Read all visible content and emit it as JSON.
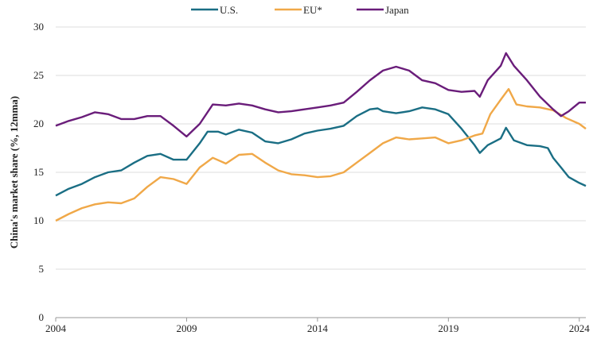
{
  "chart_data": {
    "type": "line",
    "title": "",
    "xlabel": "",
    "ylabel": "China's market share (%, 12mma)",
    "xlim": [
      2004,
      2024.25
    ],
    "ylim": [
      0,
      30
    ],
    "x_ticks": [
      "2004",
      "2009",
      "2014",
      "2019",
      "2024"
    ],
    "y_ticks": [
      "0",
      "5",
      "10",
      "15",
      "20",
      "25",
      "30"
    ],
    "grid": "horizontal",
    "legend_placement": "top-center",
    "series": [
      {
        "name": "U.S.",
        "color": "#1a6e84",
        "x": [
          2004,
          2004.5,
          2005,
          2005.5,
          2006,
          2006.5,
          2007,
          2007.5,
          2008,
          2008.5,
          2009,
          2009.5,
          2009.8,
          2010.2,
          2010.5,
          2011,
          2011.5,
          2012,
          2012.5,
          2013,
          2013.5,
          2014,
          2014.5,
          2015,
          2015.5,
          2016,
          2016.3,
          2016.5,
          2017,
          2017.5,
          2018,
          2018.5,
          2019,
          2019.5,
          2020,
          2020.2,
          2020.5,
          2021,
          2021.2,
          2021.5,
          2022,
          2022.5,
          2022.8,
          2023,
          2023.3,
          2023.6,
          2024,
          2024.25
        ],
        "y": [
          12.6,
          13.3,
          13.8,
          14.5,
          15.0,
          15.2,
          16.0,
          16.7,
          16.9,
          16.3,
          16.3,
          18.0,
          19.2,
          19.2,
          18.9,
          19.4,
          19.1,
          18.2,
          18.0,
          18.4,
          19.0,
          19.3,
          19.5,
          19.8,
          20.8,
          21.5,
          21.6,
          21.3,
          21.1,
          21.3,
          21.7,
          21.5,
          21.0,
          19.5,
          17.8,
          17.0,
          17.8,
          18.5,
          19.6,
          18.3,
          17.8,
          17.7,
          17.5,
          16.5,
          15.5,
          14.5,
          13.9,
          13.6
        ]
      },
      {
        "name": "EU*",
        "color": "#f0a848",
        "x": [
          2004,
          2004.5,
          2005,
          2005.5,
          2006,
          2006.5,
          2007,
          2007.5,
          2008,
          2008.5,
          2009,
          2009.5,
          2010,
          2010.5,
          2011,
          2011.5,
          2012,
          2012.5,
          2013,
          2013.5,
          2014,
          2014.5,
          2015,
          2015.5,
          2016,
          2016.5,
          2017,
          2017.5,
          2018,
          2018.5,
          2019,
          2019.5,
          2020,
          2020.3,
          2020.6,
          2021,
          2021.3,
          2021.6,
          2022,
          2022.5,
          2023,
          2023.5,
          2024,
          2024.25
        ],
        "y": [
          10.0,
          10.7,
          11.3,
          11.7,
          11.9,
          11.8,
          12.3,
          13.5,
          14.5,
          14.3,
          13.8,
          15.5,
          16.5,
          15.9,
          16.8,
          16.9,
          16.0,
          15.2,
          14.8,
          14.7,
          14.5,
          14.6,
          15.0,
          16.0,
          17.0,
          18.0,
          18.6,
          18.4,
          18.5,
          18.6,
          18.0,
          18.3,
          18.8,
          19.0,
          21.0,
          22.5,
          23.6,
          22.0,
          21.8,
          21.7,
          21.4,
          20.6,
          20.0,
          19.5
        ]
      },
      {
        "name": "Japan",
        "color": "#6a1d7a",
        "x": [
          2004,
          2004.5,
          2005,
          2005.5,
          2006,
          2006.5,
          2007,
          2007.5,
          2008,
          2008.5,
          2009,
          2009.5,
          2010,
          2010.5,
          2011,
          2011.5,
          2012,
          2012.5,
          2013,
          2013.5,
          2014,
          2014.5,
          2015,
          2015.5,
          2016,
          2016.5,
          2017,
          2017.5,
          2018,
          2018.5,
          2019,
          2019.5,
          2020,
          2020.2,
          2020.5,
          2021,
          2021.2,
          2021.5,
          2022,
          2022.5,
          2023,
          2023.3,
          2023.6,
          2024,
          2024.25
        ],
        "y": [
          19.8,
          20.3,
          20.7,
          21.2,
          21.0,
          20.5,
          20.5,
          20.8,
          20.8,
          19.8,
          18.7,
          20.0,
          22.0,
          21.9,
          22.1,
          21.9,
          21.5,
          21.2,
          21.3,
          21.5,
          21.7,
          21.9,
          22.2,
          23.3,
          24.5,
          25.5,
          25.9,
          25.5,
          24.5,
          24.2,
          23.5,
          23.3,
          23.4,
          22.8,
          24.5,
          26.0,
          27.3,
          26.0,
          24.5,
          22.8,
          21.5,
          20.8,
          21.3,
          22.2,
          22.2
        ]
      }
    ]
  }
}
